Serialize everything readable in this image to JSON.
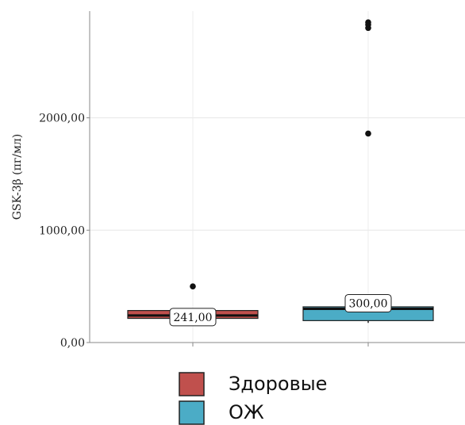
{
  "chart_data": {
    "type": "boxplot",
    "title": "",
    "xlabel": "",
    "ylabel": "GSK-3β (пг/мл)",
    "ylim": [
      0,
      2950
    ],
    "yticks": [
      {
        "value": 0,
        "label": "0,00"
      },
      {
        "value": 1000,
        "label": "1000,00"
      },
      {
        "value": 2000,
        "label": "2000,00"
      }
    ],
    "grid": true,
    "legend_position": "bottom",
    "groups": [
      {
        "name": "Здоровые",
        "color": "#c0504d",
        "median": 241,
        "median_label": "241,00",
        "q1": 215,
        "q3": 285,
        "whisker_low": 175,
        "whisker_high": 300,
        "outliers": [
          500
        ]
      },
      {
        "name": "ОЖ",
        "color": "#4bacc6",
        "median": 300,
        "median_label": "300,00",
        "q1": 195,
        "q3": 318,
        "whisker_low": 175,
        "whisker_high": 325,
        "outliers": [
          1860,
          2800,
          2830,
          2850
        ]
      }
    ]
  }
}
